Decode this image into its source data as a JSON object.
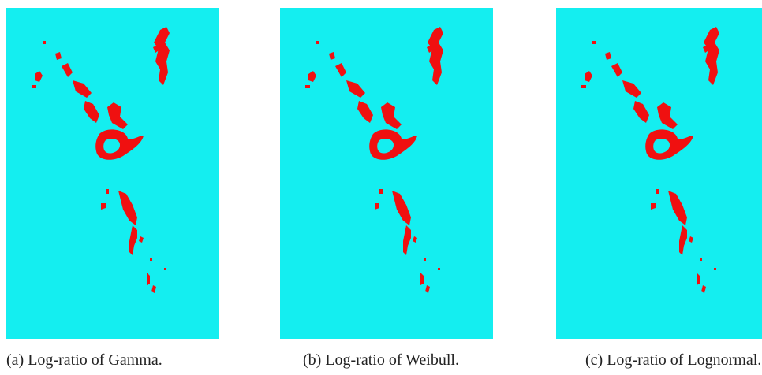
{
  "panels": [
    {
      "caption": "(a)  Log-ratio of Gamma."
    },
    {
      "caption": "(b) Log-ratio of Weibull."
    },
    {
      "caption": "(c) Log-ratio of Lognormal."
    }
  ]
}
